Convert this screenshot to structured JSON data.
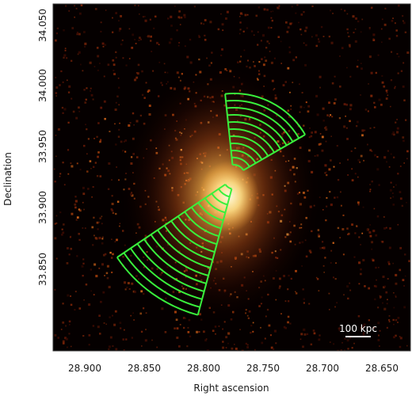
{
  "figure": {
    "xlabel": "Right ascension",
    "ylabel": "Declination",
    "x_ticks": [
      "28.900",
      "28.850",
      "28.800",
      "28.750",
      "28.700",
      "28.650"
    ],
    "y_ticks": [
      "34.050",
      "34.000",
      "33.950",
      "33.900",
      "33.850"
    ],
    "scale_bar_label": "100 kpc",
    "colors": {
      "background": "#050000",
      "emission": "#e38b2b",
      "core": "#fff6c8",
      "sectors": "#39f03c"
    }
  }
}
